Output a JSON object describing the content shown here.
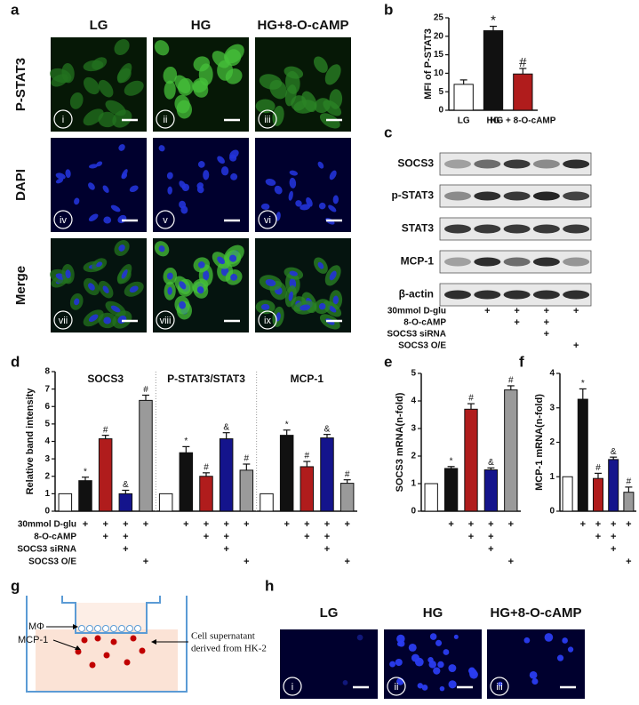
{
  "panel_letters": {
    "a": "a",
    "b": "b",
    "c": "c",
    "d": "d",
    "e": "e",
    "f": "f",
    "g": "g",
    "h": "h"
  },
  "microscopy_a": {
    "columns": [
      "LG",
      "HG",
      "HG+8-O-cAMP"
    ],
    "rows": [
      "P-STAT3",
      "DAPI",
      "Merge"
    ],
    "numerals": [
      "i",
      "ii",
      "iii",
      "iv",
      "v",
      "vi",
      "vii",
      "viii",
      "ix"
    ]
  },
  "western_c": {
    "bands": [
      "SOCS3",
      "p-STAT3",
      "STAT3",
      "MCP-1",
      "β-actin"
    ],
    "conditions": [
      {
        "label": "30mmol D-glu",
        "marks": [
          null,
          "+",
          "+",
          "+",
          "+"
        ]
      },
      {
        "label": "8-O-cAMP",
        "marks": [
          null,
          null,
          "+",
          "+",
          null
        ]
      },
      {
        "label": "SOCS3 siRNA",
        "marks": [
          null,
          null,
          null,
          "+",
          null
        ]
      },
      {
        "label": "SOCS3 O/E",
        "marks": [
          null,
          null,
          null,
          null,
          "+"
        ]
      }
    ]
  },
  "chart_data": [
    {
      "type": "bar",
      "ylabel": "MFI of P-STAT3",
      "categories": [
        "LG",
        "HG",
        "HG + 8-O-cAMP"
      ],
      "values": [
        7,
        21.5,
        9.8
      ],
      "errors": [
        1.2,
        1.2,
        1.5
      ],
      "markers": [
        null,
        "*",
        "#"
      ],
      "colors": [
        "#ffffff",
        "#111111",
        "#b01c1c"
      ],
      "ylim": [
        0,
        25
      ],
      "yticks": [
        0,
        5,
        10,
        15,
        20,
        25
      ]
    },
    {
      "type": "bar",
      "ylabel": "Relative band intensity",
      "groups": [
        {
          "title": "SOCS3",
          "values": [
            1,
            1.75,
            4.15,
            1.0,
            6.35
          ],
          "errors": [
            0,
            0.2,
            0.2,
            0.2,
            0.3
          ],
          "markers": [
            null,
            "*",
            "#",
            "&",
            "#"
          ]
        },
        {
          "title": "P-STAT3/STAT3",
          "values": [
            1,
            3.35,
            2.0,
            4.15,
            2.35
          ],
          "errors": [
            0,
            0.35,
            0.2,
            0.35,
            0.35
          ],
          "markers": [
            null,
            "*",
            "#",
            "&",
            "#"
          ]
        },
        {
          "title": "MCP-1",
          "values": [
            1,
            4.35,
            2.55,
            4.2,
            1.6
          ],
          "errors": [
            0,
            0.3,
            0.3,
            0.2,
            0.2
          ],
          "markers": [
            null,
            "*",
            "#",
            "&",
            "#"
          ]
        }
      ],
      "colors": [
        "#ffffff",
        "#111111",
        "#b01c1c",
        "#14148c",
        "#9a9a9a"
      ],
      "ylim": [
        0,
        8
      ],
      "yticks": [
        0,
        1,
        2,
        3,
        4,
        5,
        6,
        7,
        8
      ],
      "conditions": [
        {
          "label": "30mmol D-glu",
          "marks": [
            null,
            "+",
            "+",
            "+",
            "+",
            null,
            "+",
            "+",
            "+",
            "+",
            null,
            "+",
            "+",
            "+",
            "+"
          ]
        },
        {
          "label": "8-O-cAMP",
          "marks": [
            null,
            null,
            "+",
            "+",
            null,
            null,
            null,
            "+",
            "+",
            null,
            null,
            null,
            "+",
            "+",
            null
          ]
        },
        {
          "label": "SOCS3 siRNA",
          "marks": [
            null,
            null,
            null,
            "+",
            null,
            null,
            null,
            null,
            "+",
            null,
            null,
            null,
            null,
            "+",
            null
          ]
        },
        {
          "label": "SOCS3 O/E",
          "marks": [
            null,
            null,
            null,
            null,
            "+",
            null,
            null,
            null,
            null,
            "+",
            null,
            null,
            null,
            null,
            "+"
          ]
        }
      ]
    },
    {
      "type": "bar",
      "ylabel": "SOCS3 mRNA(n-fold)",
      "values": [
        1,
        1.55,
        3.7,
        1.5,
        4.4
      ],
      "errors": [
        0,
        0.07,
        0.2,
        0.07,
        0.15
      ],
      "markers": [
        null,
        "*",
        "#",
        "&",
        "#"
      ],
      "colors": [
        "#ffffff",
        "#111111",
        "#b01c1c",
        "#14148c",
        "#9a9a9a"
      ],
      "ylim": [
        0,
        5
      ],
      "yticks": [
        0,
        1,
        2,
        3,
        4,
        5
      ],
      "conditions": [
        {
          "marks": [
            null,
            "+",
            "+",
            "+",
            "+"
          ]
        },
        {
          "marks": [
            null,
            null,
            "+",
            "+",
            null
          ]
        },
        {
          "marks": [
            null,
            null,
            null,
            "+",
            null
          ]
        },
        {
          "marks": [
            null,
            null,
            null,
            null,
            "+"
          ]
        }
      ]
    },
    {
      "type": "bar",
      "ylabel": "MCP-1 mRNA(n-fold)",
      "values": [
        1,
        3.25,
        0.95,
        1.5,
        0.55
      ],
      "errors": [
        0,
        0.3,
        0.15,
        0.07,
        0.15
      ],
      "markers": [
        null,
        "*",
        "#",
        "&",
        "#"
      ],
      "colors": [
        "#ffffff",
        "#111111",
        "#b01c1c",
        "#14148c",
        "#9a9a9a"
      ],
      "ylim": [
        0,
        4
      ],
      "yticks": [
        0,
        1,
        2,
        3,
        4
      ],
      "conditions": [
        {
          "marks": [
            null,
            "+",
            "+",
            "+",
            "+"
          ]
        },
        {
          "marks": [
            null,
            null,
            "+",
            "+",
            null
          ]
        },
        {
          "marks": [
            null,
            null,
            null,
            "+",
            null
          ]
        },
        {
          "marks": [
            null,
            null,
            null,
            null,
            "+"
          ]
        }
      ]
    }
  ],
  "diagram_g": {
    "macrophage": "MΦ",
    "chemokine": "MCP-1",
    "supernatant": [
      "Cell supernatant",
      "derived from HK-2"
    ]
  },
  "microscopy_h": {
    "columns": [
      "LG",
      "HG",
      "HG+8-O-cAMP"
    ],
    "numerals": [
      "i",
      "ii",
      "iii"
    ]
  }
}
